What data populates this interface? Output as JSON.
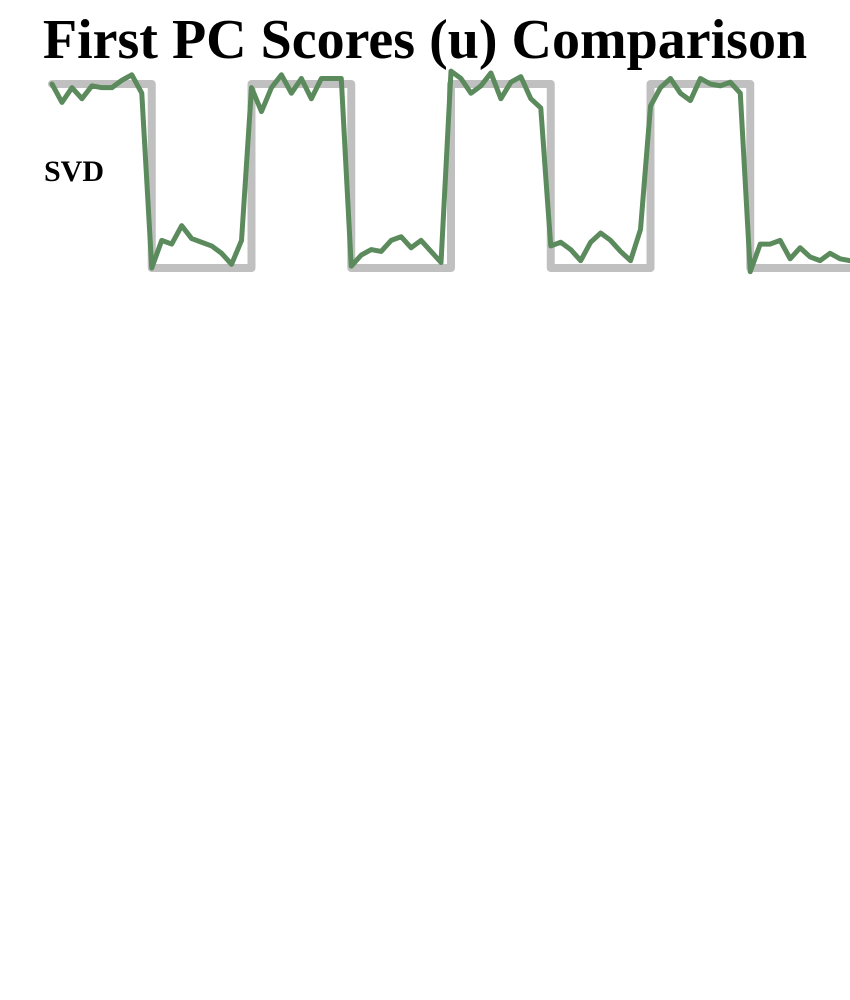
{
  "chart_data": {
    "type": "line",
    "title": "First PC Scores (u) Comparison",
    "panel_label": "SVD",
    "xlabel": "",
    "ylabel": "",
    "grid": false,
    "legend": "none",
    "ylim": [
      0,
      1
    ],
    "x": [
      0,
      1,
      2,
      3,
      4,
      5,
      6,
      7,
      8,
      9,
      10,
      11,
      12,
      13,
      14,
      15,
      16,
      17,
      18,
      19,
      20,
      21,
      22,
      23,
      24,
      25,
      26,
      27,
      28,
      29,
      30,
      31,
      32,
      33,
      34,
      35,
      36,
      37,
      38,
      39,
      40,
      41,
      42,
      43,
      44,
      45,
      46,
      47,
      48,
      49,
      50,
      51,
      52,
      53,
      54,
      55,
      56,
      57,
      58,
      59,
      60,
      61,
      62,
      63,
      64,
      65,
      66,
      67,
      68,
      69,
      70,
      71,
      72,
      73,
      74,
      75,
      76,
      77,
      78,
      79,
      80
    ],
    "series": [
      {
        "role": "reference",
        "color": "#c0c0c0",
        "values": [
          1,
          1,
          1,
          1,
          1,
          1,
          1,
          1,
          1,
          1,
          0,
          0,
          0,
          0,
          0,
          0,
          0,
          0,
          0,
          0,
          1,
          1,
          1,
          1,
          1,
          1,
          1,
          1,
          1,
          1,
          0,
          0,
          0,
          0,
          0,
          0,
          0,
          0,
          0,
          0,
          1,
          1,
          1,
          1,
          1,
          1,
          1,
          1,
          1,
          1,
          0,
          0,
          0,
          0,
          0,
          0,
          0,
          0,
          0,
          0,
          1,
          1,
          1,
          1,
          1,
          1,
          1,
          1,
          1,
          1,
          0,
          0,
          0,
          0,
          0,
          0,
          0,
          0,
          0,
          0,
          0
        ]
      },
      {
        "role": "svd",
        "color": "#5b8a5c",
        "values": [
          1.0,
          0.9,
          0.98,
          0.92,
          0.99,
          0.98,
          0.98,
          1.02,
          1.05,
          0.95,
          0.0,
          0.15,
          0.13,
          0.23,
          0.16,
          0.14,
          0.12,
          0.08,
          0.02,
          0.15,
          0.98,
          0.85,
          0.98,
          1.05,
          0.95,
          1.03,
          0.92,
          1.03,
          1.03,
          1.03,
          0.01,
          0.07,
          0.1,
          0.09,
          0.15,
          0.17,
          0.11,
          0.15,
          0.09,
          0.03,
          1.07,
          1.03,
          0.95,
          0.99,
          1.06,
          0.92,
          1.01,
          1.04,
          0.92,
          0.87,
          0.12,
          0.14,
          0.1,
          0.04,
          0.14,
          0.19,
          0.15,
          0.09,
          0.04,
          0.21,
          0.88,
          0.98,
          1.03,
          0.95,
          0.91,
          1.03,
          1.0,
          0.99,
          1.01,
          0.95,
          -0.02,
          0.13,
          0.13,
          0.15,
          0.05,
          0.11,
          0.06,
          0.04,
          0.08,
          0.05,
          0.04
        ]
      }
    ]
  }
}
